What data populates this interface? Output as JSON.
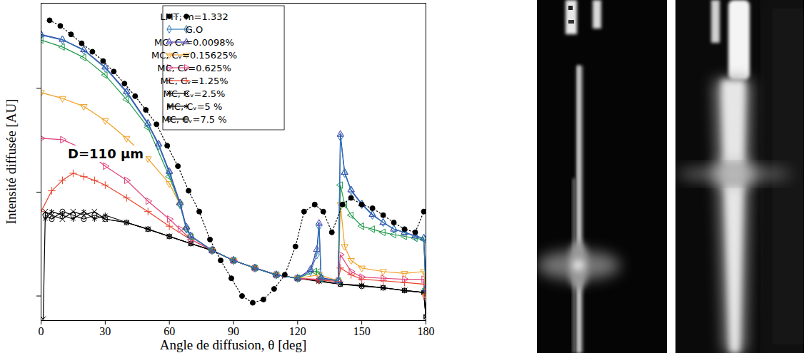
{
  "chart_data": {
    "type": "line",
    "x_label": "Angle de diffusion, θ [deg]",
    "y_label": "Intensité diffusée [AU]",
    "annotations": [
      {
        "text": "D=110 µm"
      }
    ],
    "log": "y",
    "grid": false,
    "legend": "top",
    "tick_labels": "x",
    "xlim": [
      0,
      180
    ],
    "xticks": [
      0,
      30,
      60,
      90,
      120,
      150,
      180
    ],
    "ylim": [
      0.58,
      660
    ],
    "yticks": [
      1,
      10,
      100
    ],
    "series": [
      {
        "name": "LMT, m=1.332",
        "color": "#000000",
        "marker": "circle-filled",
        "line_style": "dotted",
        "x": [
          4,
          9,
          14,
          19,
          24,
          29,
          34,
          39,
          44,
          49,
          54,
          59,
          64,
          69,
          74,
          79,
          84,
          89,
          94,
          99,
          104,
          109,
          114,
          119,
          123,
          128,
          132,
          136,
          141,
          145,
          150,
          155,
          160,
          165,
          170,
          175,
          179
        ],
        "values": [
          452,
          399,
          331,
          271,
          225,
          183,
          145,
          111,
          84,
          62,
          45,
          28,
          17.8,
          10.3,
          6.5,
          3.5,
          2.2,
          1.48,
          1.0,
          0.86,
          0.925,
          1.17,
          1.6,
          3.0,
          6.5,
          7.6,
          6.5,
          4.1,
          7.6,
          8.8,
          7.6,
          7.0,
          6.0,
          5.1,
          4.4,
          4.1,
          6.5
        ]
      },
      {
        "name": "G.O",
        "color": "#2a7ab8",
        "marker": "diamond",
        "line_style": "solid",
        "x": [
          0,
          10,
          20,
          30,
          40,
          50,
          55,
          60,
          65,
          68,
          70,
          80,
          90,
          100,
          110,
          120,
          126,
          129,
          130,
          131,
          139,
          140,
          142,
          145,
          150,
          155,
          160,
          165,
          170,
          175,
          179,
          180
        ],
        "values": [
          326,
          292,
          232,
          157,
          91,
          45,
          28,
          15.2,
          7.6,
          4.4,
          3.75,
          2.75,
          2.2,
          1.86,
          1.6,
          1.48,
          1.72,
          2.5,
          4.7,
          1.48,
          1.4,
          34,
          15.2,
          10.3,
          7.6,
          6.0,
          5.1,
          4.4,
          4.1,
          3.75,
          3.6,
          1.17
        ]
      },
      {
        "name": "MC, Cᵥ=0.0098%",
        "color": "#3a2fa8",
        "marker": "triangle-up",
        "line_style": "solid",
        "x": [
          0,
          10,
          20,
          30,
          40,
          50,
          55,
          60,
          65,
          68,
          70,
          80,
          90,
          100,
          110,
          120,
          126,
          129,
          130,
          131,
          139,
          140,
          142,
          145,
          150,
          155,
          160,
          165,
          170,
          175,
          179,
          180
        ],
        "values": [
          330,
          295,
          235,
          160,
          93,
          46,
          29,
          15.8,
          7.9,
          4.6,
          3.8,
          2.75,
          2.2,
          1.86,
          1.6,
          1.48,
          1.8,
          2.8,
          5.0,
          1.5,
          1.4,
          36,
          15.5,
          10.5,
          7.7,
          6.1,
          5.1,
          4.4,
          4.1,
          3.8,
          3.6,
          1.17
        ]
      },
      {
        "name": null,
        "color": "#1f9a4a",
        "marker": "triangle-left",
        "line_style": "solid",
        "x": [
          0,
          10,
          20,
          30,
          40,
          50,
          60,
          65,
          68,
          70,
          80,
          90,
          100,
          110,
          120,
          128,
          130,
          131,
          139,
          140,
          142,
          145,
          150,
          155,
          160,
          165,
          170,
          175,
          179,
          180
        ],
        "values": [
          292,
          250,
          198,
          134,
          78,
          42,
          14.1,
          7.6,
          4.4,
          3.75,
          2.75,
          2.2,
          1.86,
          1.6,
          1.48,
          1.72,
          1.72,
          1.48,
          1.4,
          11.7,
          7.6,
          6.0,
          4.7,
          4.4,
          4.1,
          3.9,
          3.75,
          3.6,
          3.5,
          1.17
        ]
      },
      {
        "name": "MC, Cᵥ=0.15625%",
        "color": "#f0a023",
        "marker": "triangle-down",
        "line_style": "solid",
        "x": [
          0,
          10,
          20,
          30,
          40,
          50,
          60,
          65,
          68,
          70,
          80,
          90,
          100,
          110,
          120,
          130,
          139,
          140,
          142,
          145,
          150,
          160,
          170,
          179,
          180
        ],
        "values": [
          91,
          80,
          67,
          49,
          33,
          21,
          12.1,
          7.6,
          4.4,
          3.75,
          2.75,
          2.2,
          1.86,
          1.6,
          1.48,
          1.6,
          1.4,
          7.6,
          3.0,
          2.2,
          1.86,
          1.72,
          1.65,
          1.72,
          1.0
        ]
      },
      {
        "name": "MC, Cᵥ=0.625%",
        "color": "#e0407a",
        "marker": "triangle-right",
        "line_style": "solid",
        "x": [
          0,
          10,
          20,
          30,
          40,
          50,
          60,
          65,
          70,
          80,
          90,
          100,
          110,
          120,
          130,
          139,
          140,
          145,
          150,
          160,
          170,
          179,
          180
        ],
        "values": [
          33,
          32,
          26,
          17.8,
          13.0,
          8.2,
          5.5,
          4.4,
          3.5,
          2.75,
          2.2,
          1.86,
          1.6,
          1.48,
          1.45,
          1.4,
          2.5,
          1.72,
          1.52,
          1.48,
          1.45,
          1.45,
          1.0
        ]
      },
      {
        "name": "MC, Cᵥ=1.25%",
        "color": "#e8442c",
        "marker": "plus",
        "line_style": "solid",
        "x": [
          0,
          5,
          10,
          15,
          20,
          25,
          30,
          40,
          50,
          60,
          70,
          80,
          90,
          100,
          110,
          120,
          130,
          139,
          140,
          145,
          150,
          160,
          170,
          179,
          180
        ],
        "values": [
          6.5,
          10.3,
          13.0,
          15.2,
          14.1,
          13.0,
          11.7,
          8.8,
          6.5,
          4.7,
          3.5,
          2.75,
          2.2,
          1.86,
          1.6,
          1.48,
          1.42,
          1.38,
          1.86,
          1.6,
          1.45,
          1.4,
          1.35,
          1.3,
          1.0
        ]
      },
      {
        "name": "MC, Cᵥ=2.5%",
        "color": "#000000",
        "marker": "times",
        "line_style": "solid",
        "x": [
          1,
          2,
          5,
          10,
          15,
          20,
          25,
          30,
          40,
          50,
          60,
          70,
          80,
          90,
          100,
          110,
          120,
          130,
          140,
          150,
          160,
          170,
          179,
          180
        ],
        "values": [
          0.6,
          6.5,
          6.0,
          5.5,
          6.5,
          6.0,
          6.5,
          5.5,
          5.1,
          4.4,
          3.75,
          3.2,
          2.75,
          2.2,
          1.86,
          1.6,
          1.48,
          1.4,
          1.3,
          1.26,
          1.2,
          1.13,
          1.08,
          0.63
        ]
      },
      {
        "name": "MC, Cᵥ=5 %",
        "color": "#000000",
        "marker": "asterisk",
        "line_style": "solid",
        "x": [
          2,
          5,
          10,
          15,
          20,
          25,
          30,
          40,
          50,
          60,
          70,
          80,
          90,
          100,
          110,
          120,
          130,
          140,
          150,
          160,
          170,
          179,
          180
        ],
        "values": [
          5.5,
          6.5,
          6.0,
          5.5,
          6.5,
          5.5,
          6.0,
          5.1,
          4.4,
          3.75,
          3.2,
          2.75,
          2.2,
          1.86,
          1.6,
          1.48,
          1.38,
          1.3,
          1.26,
          1.2,
          1.13,
          1.08,
          0.63
        ]
      },
      {
        "name": "MC, Cᵥ=7.5 %",
        "color": "#000000",
        "marker": "circle",
        "line_style": "solid",
        "x": [
          2,
          5,
          10,
          15,
          20,
          25,
          30,
          40,
          50,
          60,
          70,
          80,
          90,
          100,
          110,
          120,
          130,
          140,
          150,
          160,
          170,
          179,
          180
        ],
        "values": [
          6.0,
          5.5,
          6.5,
          6.0,
          5.5,
          6.0,
          5.5,
          5.1,
          4.4,
          3.75,
          3.2,
          2.75,
          2.2,
          1.86,
          1.6,
          1.48,
          1.4,
          1.3,
          1.24,
          1.2,
          1.13,
          1.08,
          0.63
        ]
      }
    ]
  }
}
